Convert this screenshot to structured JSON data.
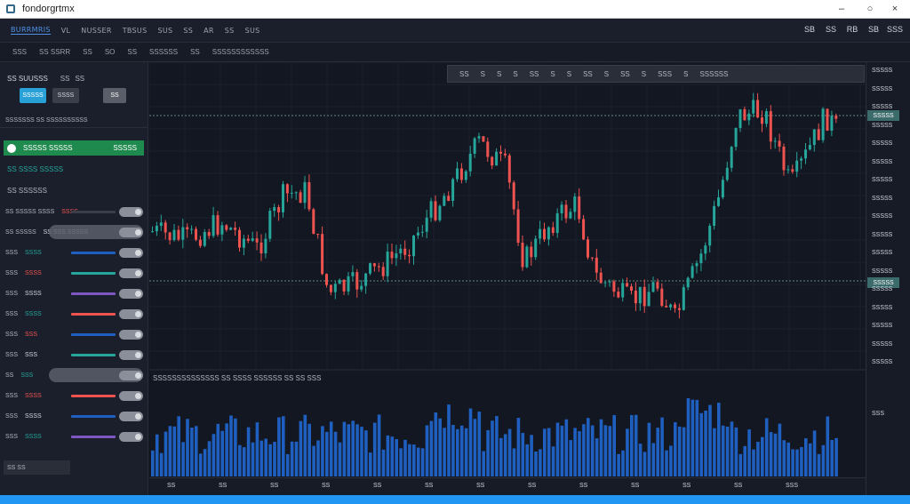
{
  "window": {
    "title": "fondorgrtmx"
  },
  "topbar": {
    "items": [
      "BURRMRIS",
      "VL",
      "NUSSER",
      "TBSUS",
      "SUS",
      "SS",
      "AR",
      "SS",
      "SUS"
    ],
    "right": [
      "SB",
      "SS",
      "RB",
      "SB",
      "SSS"
    ]
  },
  "subbar": {
    "items": [
      "SSS",
      "SS SSRR",
      "SS",
      "SO",
      "SS",
      "SSSSSS",
      "SS",
      "SSSSSSSSSSSS"
    ]
  },
  "sidebar": {
    "header": "SS SUUSSS",
    "header_right": [
      "SS",
      "SS"
    ],
    "buttons": [
      "SSSSS",
      "SSSS",
      "SS"
    ],
    "section": "SSSSSSS SS SSSSSSSSSS",
    "green_label": "SSSSS SSSSS",
    "green_value": "SSSSS",
    "sub_label": "SS SSSS SSSSS",
    "label2": "SS SSSSSS",
    "rows": [
      {
        "label": "SS SSSSS SSSS",
        "val": "SSSS"
      },
      {
        "label": "SS SSSSS",
        "val": "SS SSS SSSSS"
      },
      {
        "label": "SSS",
        "val": "SSSS"
      },
      {
        "label": "SSS",
        "val": "SSSS"
      },
      {
        "label": "SSS",
        "val": "SSSS"
      },
      {
        "label": "SSS",
        "val": "SSSS"
      },
      {
        "label": "SSS",
        "val": "SSS"
      },
      {
        "label": "SSS",
        "val": "SSS"
      },
      {
        "label": "SS",
        "val": "SSS"
      },
      {
        "label": "SSS",
        "val": "SSSS"
      },
      {
        "label": "SSS",
        "val": "SSSS"
      },
      {
        "label": "SSS",
        "val": "SSSS"
      }
    ],
    "footer": "SS SS"
  },
  "chart": {
    "toolbar": [
      "SS",
      "S",
      "S",
      "S",
      "SS",
      "S",
      "S",
      "SS",
      "S",
      "SS",
      "S",
      "SSS",
      "S",
      "SSSSSS"
    ],
    "volume_header": "SSSSSSSSSSSSSS SS SSSS SSSSSS SS SS SSS",
    "price_labels": [
      "SSSSS",
      "SSSSS",
      "SSSSS",
      "SSSSS",
      "SSSSS",
      "SSSSS",
      "SSSSS",
      "SSSSS",
      "SSSSS",
      "SSSSS",
      "SSSSS",
      "SSSSS",
      "SSSSS",
      "SSSSS",
      "SSSSS",
      "SSSSS",
      "SSSSS"
    ],
    "price_tag_top": "SSSSS",
    "price_tag_mid": "SSSSS",
    "volume_axis_label": "SSS",
    "time_labels": [
      "SS",
      "SS",
      "SS",
      "SS",
      "SS",
      "SS",
      "SS",
      "SS",
      "SS",
      "SS",
      "SS",
      "SS",
      "SSS"
    ],
    "colors": {
      "up": "#26a69a",
      "down": "#ef5350",
      "volume": "#1e5fbf",
      "background": "#131722"
    }
  }
}
